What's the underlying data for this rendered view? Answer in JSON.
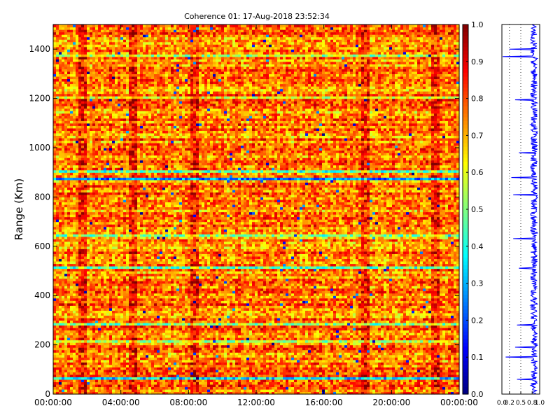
{
  "chart_data": [
    {
      "type": "heatmap",
      "title": "Coherence 01: 17-Aug-2018 23:52:34",
      "xlabel": "",
      "ylabel": "Range (Km)",
      "x_ticks": [
        "00:00:00",
        "04:00:00",
        "08:00:00",
        "12:00:00",
        "16:00:00",
        "20:00:00",
        "00:00:00"
      ],
      "y_ticks": [
        "0",
        "200",
        "400",
        "600",
        "800",
        "1000",
        "1200",
        "1400"
      ],
      "ylim": [
        0,
        1500
      ],
      "time_range_hours": [
        0,
        24
      ],
      "value_range": [
        0,
        1
      ],
      "colormap": "jet",
      "colorbar_ticks": [
        "0.0",
        "0.1",
        "0.2",
        "0.3",
        "0.4",
        "0.5",
        "0.6",
        "0.7",
        "0.8",
        "0.9",
        "1.0"
      ],
      "typical_value": 0.8,
      "low_coherence_ranges_km": [
        {
          "range": 60,
          "mean": 0.35
        },
        {
          "range": 215,
          "mean": 0.55
        },
        {
          "range": 285,
          "mean": 0.5
        },
        {
          "range": 510,
          "mean": 0.45
        },
        {
          "range": 640,
          "mean": 0.5
        },
        {
          "range": 870,
          "mean": 0.25
        },
        {
          "range": 900,
          "mean": 0.45
        },
        {
          "range": 1370,
          "mean": 0.55
        },
        {
          "range": 1200,
          "mean": 0.6
        }
      ],
      "high_coherence_columns_hours": [
        1.5,
        4.5,
        8.2,
        18.3,
        22.5
      ],
      "grid": false
    },
    {
      "type": "line",
      "title": "",
      "xlabel": "",
      "ylabel": "",
      "orientation": "vertical",
      "x_ticks": [
        "0.0",
        "0.2",
        "0.5",
        "0.8",
        "1.0"
      ],
      "xlim": [
        0,
        1
      ],
      "ylim": [
        0,
        1500
      ],
      "series_color": "#0000ff",
      "dips": [
        {
          "range": 1370,
          "value": 0.02
        },
        {
          "range": 1400,
          "value": 0.2
        },
        {
          "range": 1195,
          "value": 0.35
        },
        {
          "range": 980,
          "value": 0.45
        },
        {
          "range": 880,
          "value": 0.25
        },
        {
          "range": 810,
          "value": 0.3
        },
        {
          "range": 630,
          "value": 0.3
        },
        {
          "range": 510,
          "value": 0.45
        },
        {
          "range": 280,
          "value": 0.4
        },
        {
          "range": 190,
          "value": 0.35
        },
        {
          "range": 150,
          "value": 0.1
        },
        {
          "range": 60,
          "value": 0.4
        }
      ],
      "reference_lines": [
        0.2,
        0.5
      ],
      "typical_value": 0.85
    }
  ]
}
